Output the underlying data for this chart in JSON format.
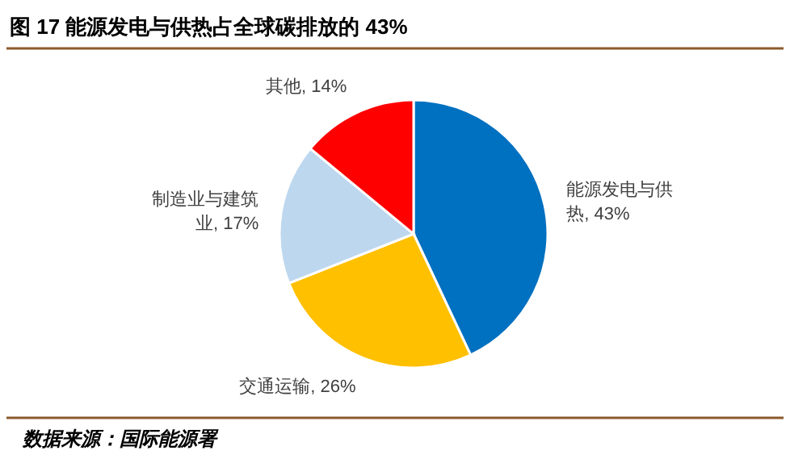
{
  "chart_data": {
    "type": "pie",
    "title": "图 17  能源发电与供热占全球碳排放的 43%",
    "categories": [
      "能源发电与供热",
      "交通运输",
      "制造业与建筑业",
      "其他"
    ],
    "values": [
      43,
      26,
      17,
      14
    ],
    "value_labels": [
      "43%",
      "26%",
      "17%",
      "14%"
    ],
    "colors": [
      "#0070c0",
      "#ffc000",
      "#bdd7ee",
      "#ff0000"
    ],
    "annotations": [
      "数据来源：国际能源署"
    ]
  }
}
